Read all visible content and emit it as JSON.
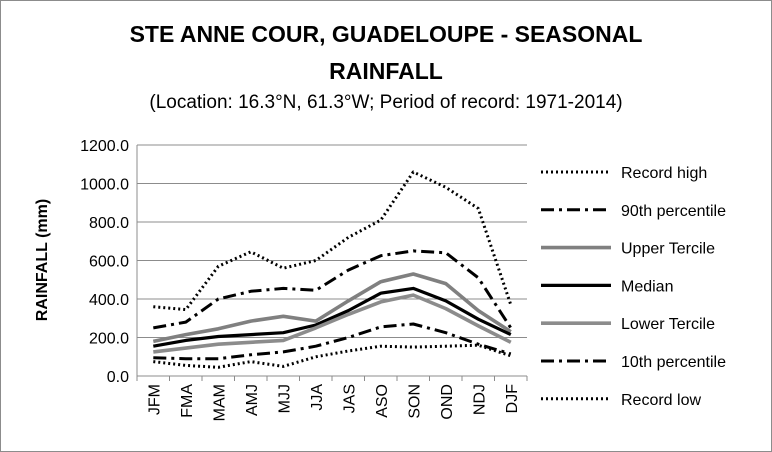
{
  "chart_data": {
    "type": "line",
    "title_line1": "STE ANNE COUR, GUADELOUPE - SEASONAL",
    "title_line2": "RAINFALL",
    "subtitle": "(Location: 16.3°N, 61.3°W; Period of record: 1971-2014)",
    "xlabel": "",
    "ylabel": "RAINFALL (mm)",
    "ylim": [
      0,
      1200
    ],
    "yticks": [
      "0.0",
      "200.0",
      "400.0",
      "600.0",
      "800.0",
      "1000.0",
      "1200.0"
    ],
    "grid": "horizontal",
    "legend_position": "right",
    "categories": [
      "JFM",
      "FMA",
      "MAM",
      "AMJ",
      "MJJ",
      "JJA",
      "JAS",
      "ASO",
      "SON",
      "OND",
      "NDJ",
      "DJF"
    ],
    "series": [
      {
        "name": "Record high",
        "style": "dotted",
        "color": "#000000",
        "values": [
          360,
          345,
          570,
          645,
          560,
          600,
          720,
          810,
          1060,
          980,
          870,
          370
        ]
      },
      {
        "name": "90th percentile",
        "style": "dashdot",
        "color": "#000000",
        "values": [
          250,
          280,
          400,
          440,
          455,
          445,
          550,
          625,
          650,
          640,
          510,
          250
        ]
      },
      {
        "name": "Upper Tercile",
        "style": "solid",
        "color": "#808080",
        "values": [
          180,
          215,
          245,
          285,
          310,
          285,
          390,
          490,
          530,
          480,
          340,
          230
        ]
      },
      {
        "name": "Median",
        "style": "solid",
        "color": "#000000",
        "values": [
          155,
          185,
          205,
          215,
          225,
          265,
          340,
          430,
          455,
          390,
          295,
          215
        ]
      },
      {
        "name": "Lower Tercile",
        "style": "solid",
        "color": "#8c8c8c",
        "values": [
          125,
          145,
          165,
          175,
          185,
          250,
          320,
          385,
          420,
          350,
          260,
          175
        ]
      },
      {
        "name": "10th percentile",
        "style": "dashdot",
        "color": "#000000",
        "values": [
          95,
          90,
          90,
          110,
          125,
          155,
          200,
          255,
          270,
          225,
          165,
          115
        ]
      },
      {
        "name": "Record low",
        "style": "dotted",
        "color": "#000000",
        "values": [
          75,
          55,
          45,
          75,
          50,
          100,
          130,
          155,
          150,
          155,
          160,
          105
        ]
      }
    ]
  }
}
